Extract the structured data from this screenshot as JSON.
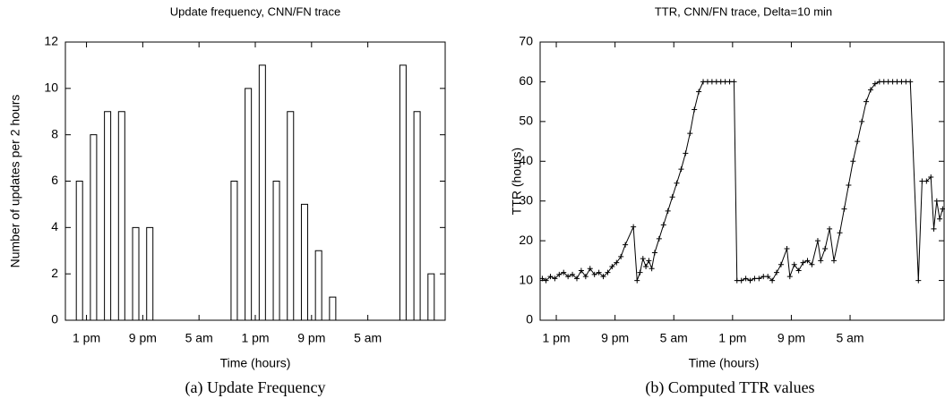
{
  "chart_data": [
    {
      "type": "bar",
      "title": "Update frequency, CNN/FN trace",
      "xlabel": "Time (hours)",
      "ylabel": "Number of updates per 2 hours",
      "caption": "(a) Update Frequency",
      "color": "#000000",
      "x": [
        12,
        14,
        16,
        18,
        20,
        22,
        24,
        26,
        28,
        30,
        32,
        34,
        36,
        38,
        40,
        42,
        44,
        46,
        48,
        50,
        52,
        54,
        56,
        58,
        60,
        62
      ],
      "values": [
        6,
        8,
        9,
        9,
        4,
        4,
        0,
        0,
        0,
        0,
        0,
        6,
        10,
        11,
        6,
        9,
        5,
        3,
        1,
        0,
        0,
        0,
        0,
        11,
        9,
        2
      ],
      "xlim": [
        10,
        64
      ],
      "xticks": [
        {
          "value": 13,
          "label": "1 pm"
        },
        {
          "value": 21,
          "label": "9 pm"
        },
        {
          "value": 29,
          "label": "5 am"
        },
        {
          "value": 37,
          "label": "1 pm"
        },
        {
          "value": 45,
          "label": "9 pm"
        },
        {
          "value": 53,
          "label": "5 am"
        }
      ],
      "ylim": [
        0,
        12
      ],
      "yticks": [
        0,
        2,
        4,
        6,
        8,
        10,
        12
      ]
    },
    {
      "type": "line",
      "title": "TTR, CNN/FN trace, Delta=10 min",
      "xlabel": "Time (hours)",
      "ylabel": "TTR (hours)",
      "caption": "(b) Computed TTR values",
      "color": "#000000",
      "x": [
        11.1,
        11.6,
        12.2,
        12.8,
        13.4,
        14.0,
        14.6,
        15.2,
        15.8,
        16.4,
        17.0,
        17.6,
        18.2,
        18.8,
        19.4,
        20.0,
        20.6,
        21.2,
        21.8,
        22.4,
        23.5,
        24.0,
        24.4,
        24.8,
        25.2,
        25.6,
        26.0,
        26.4,
        27.0,
        27.6,
        28.2,
        28.8,
        29.4,
        30.0,
        30.6,
        31.2,
        31.8,
        32.4,
        33.0,
        33.6,
        34.2,
        34.8,
        35.4,
        36.0,
        36.6,
        37.2,
        37.6,
        38.2,
        38.8,
        39.4,
        40.0,
        40.6,
        41.2,
        41.8,
        42.4,
        43.0,
        43.6,
        44.4,
        44.8,
        45.4,
        46.0,
        46.6,
        47.2,
        47.8,
        48.6,
        49.0,
        49.6,
        50.2,
        50.8,
        51.6,
        52.2,
        52.8,
        53.4,
        54.0,
        54.6,
        55.2,
        55.8,
        56.4,
        57.0,
        57.6,
        58.2,
        58.8,
        59.4,
        60.0,
        60.6,
        61.2,
        62.3,
        62.8,
        63.4,
        64.0,
        64.4,
        64.8,
        65.2,
        65.6
      ],
      "series": [
        {
          "values": [
            10.5,
            10,
            11,
            10.5,
            11.5,
            12,
            11,
            11.5,
            10.5,
            12.5,
            11,
            13,
            11.5,
            12,
            11,
            12,
            13.5,
            14.5,
            16,
            19,
            23.5,
            10,
            12,
            15.5,
            13.5,
            15,
            13,
            17,
            20.5,
            24,
            27.5,
            31,
            34.5,
            38,
            42,
            47,
            53,
            57.5,
            60,
            60,
            60,
            60,
            60,
            60,
            60,
            60,
            10,
            10,
            10.5,
            10,
            10.5,
            10.5,
            11,
            11,
            10,
            12,
            14,
            18,
            11,
            14,
            12.5,
            14.5,
            15,
            14,
            20,
            15,
            18,
            23,
            15,
            22,
            28,
            34,
            40,
            45,
            50,
            55,
            58,
            59.5,
            60,
            60,
            60,
            60,
            60,
            60,
            60,
            60,
            10,
            35,
            35,
            36,
            23,
            30,
            25.5,
            28
          ]
        }
      ],
      "xlim": [
        10.8,
        65.8
      ],
      "xticks": [
        {
          "value": 13,
          "label": "1 pm"
        },
        {
          "value": 21,
          "label": "9 pm"
        },
        {
          "value": 29,
          "label": "5 am"
        },
        {
          "value": 37,
          "label": "1 pm"
        },
        {
          "value": 45,
          "label": "9 pm"
        },
        {
          "value": 53,
          "label": "5 am"
        }
      ],
      "ylim": [
        0,
        70
      ],
      "yticks": [
        0,
        10,
        20,
        30,
        40,
        50,
        60,
        70
      ]
    }
  ]
}
